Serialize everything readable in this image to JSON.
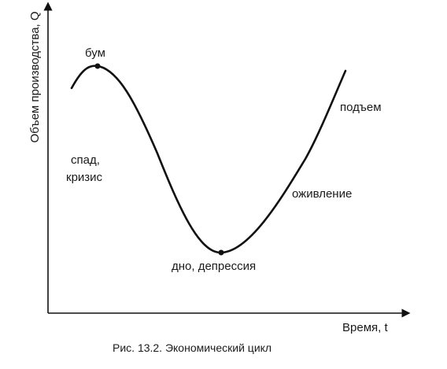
{
  "diagram": {
    "y_axis_label": "Объем производства, Q",
    "x_axis_label": "Время, t",
    "caption": "Рис. 13.2. Экономический цикл",
    "phase_labels": {
      "boom": "бум",
      "decline_line1": "спад,",
      "decline_line2": "кризис",
      "trough": "дно, депрессия",
      "recovery": "оживление",
      "upswing": "подъем"
    },
    "curve_color": "#111111",
    "axis_color": "#111111"
  }
}
